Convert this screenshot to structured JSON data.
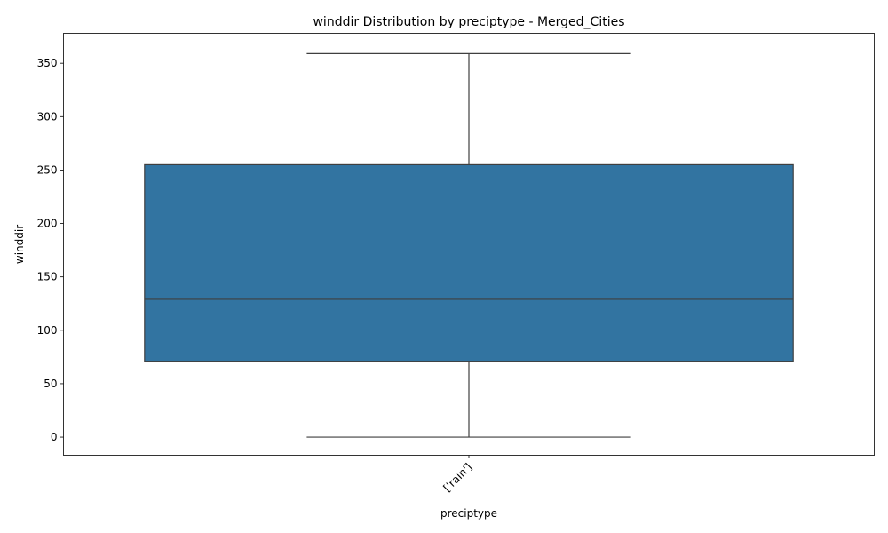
{
  "chart_data": {
    "type": "box",
    "title": "winddir Distribution by preciptype - Merged_Cities",
    "xlabel": "preciptype",
    "ylabel": "winddir",
    "ylim": [
      -17,
      378
    ],
    "yticks": [
      0,
      50,
      100,
      150,
      200,
      250,
      300,
      350
    ],
    "categories": [
      "['rain']"
    ],
    "boxes": [
      {
        "category": "['rain']",
        "min": 0,
        "q1": 71,
        "median": 129,
        "q3": 255,
        "max": 359
      }
    ],
    "box_color": "#3274a1",
    "line_color": "#3f3f3f",
    "grid": false,
    "legend": "none"
  }
}
